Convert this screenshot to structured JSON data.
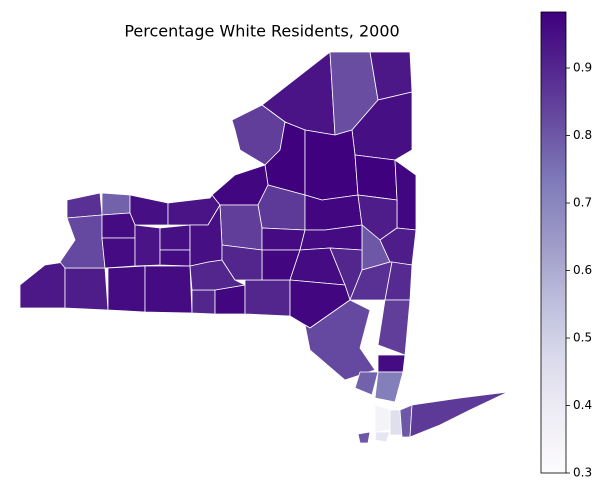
{
  "chart_data": {
    "type": "choropleth",
    "title": "Percentage White Residents, 2000",
    "values": [
      0.93,
      0.92,
      0.96,
      0.96,
      0.9,
      0.97,
      0.9,
      0.9,
      0.88,
      0.78,
      0.95,
      0.83,
      0.96,
      0.96,
      0.94,
      0.95,
      0.96,
      0.94,
      0.82,
      0.93,
      0.85,
      0.98,
      0.95,
      0.98,
      0.98,
      0.97,
      0.97,
      0.86,
      0.85,
      0.94,
      0.95,
      0.97,
      0.96,
      0.92,
      0.8,
      0.96,
      0.97,
      0.9,
      0.96,
      0.9,
      0.92,
      0.97,
      0.88,
      0.89,
      0.85,
      0.83,
      0.96,
      0.78,
      0.72,
      0.35,
      0.8,
      0.42,
      0.45,
      0.8,
      0.86
    ],
    "colormap": [
      "#fcfbfd",
      "#efedf5",
      "#dadaeb",
      "#bcbddc",
      "#9e9ac8",
      "#807dba",
      "#6a51a3",
      "#54278f",
      "#3f007d"
    ],
    "ylim": [
      0.3,
      0.983
    ],
    "yticks": [
      0.3,
      0.4,
      0.5,
      0.6,
      0.7,
      0.8,
      0.9
    ]
  }
}
